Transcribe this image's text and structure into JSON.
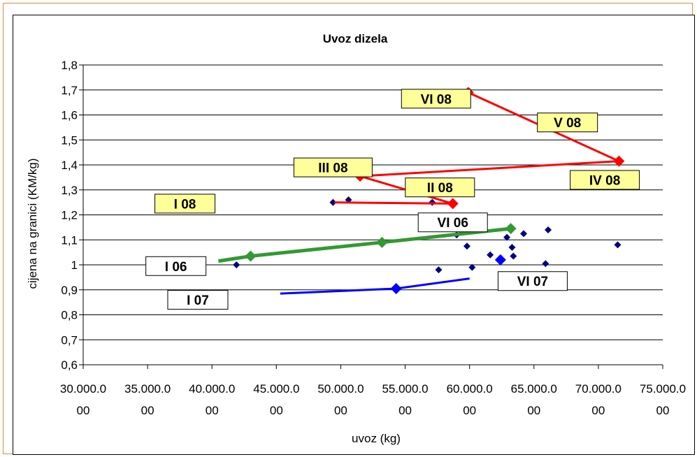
{
  "chart_data": {
    "type": "scatter",
    "title": "Uvoz dizela",
    "xlabel": "uvoz (kg)",
    "ylabel": "cijena na granici (KM/kg)",
    "xlim": [
      30000000,
      75000000
    ],
    "ylim": [
      0.6,
      1.8
    ],
    "x_ticks": [
      30000000,
      35000000,
      40000000,
      45000000,
      50000000,
      55000000,
      60000000,
      65000000,
      70000000,
      75000000
    ],
    "x_tick_labels_line1": [
      "30.000.0",
      "35.000.0",
      "40.000.0",
      "45.000.0",
      "50.000.0",
      "55.000.0",
      "60.000.0",
      "65.000.0",
      "70.000.0",
      "75.000.0"
    ],
    "x_tick_labels_line2": [
      "00",
      "00",
      "00",
      "00",
      "00",
      "00",
      "00",
      "00",
      "00",
      "00"
    ],
    "y_ticks": [
      0.6,
      0.7,
      0.8,
      0.9,
      1.0,
      1.1,
      1.2,
      1.3,
      1.4,
      1.5,
      1.6,
      1.7,
      1.8
    ],
    "y_tick_labels": [
      "0,6",
      "0,7",
      "0,8",
      "0,9",
      "1",
      "1,1",
      "1,2",
      "1,3",
      "1,4",
      "1,5",
      "1,6",
      "1,7",
      "1,8"
    ],
    "grid": "horizontal",
    "colors": {
      "scatter": "#000080",
      "red": "#ff0000",
      "green": "#339933",
      "blue": "#0000ff",
      "label_yellow": "#ffff99",
      "label_white": "#ffffff"
    },
    "series": [
      {
        "style": "scatter",
        "x": [
          41900000,
          49400000,
          50600000,
          57100000,
          57600000,
          59000000,
          59300000,
          59800000,
          60200000,
          61600000,
          62900000,
          63300000,
          63400000,
          64200000,
          65900000,
          66100000,
          71500000
        ],
        "y": [
          1.0,
          1.25,
          1.26,
          1.25,
          0.98,
          1.12,
          1.14,
          1.075,
          0.99,
          1.04,
          1.11,
          1.07,
          1.035,
          1.125,
          1.005,
          1.14,
          1.08
        ]
      },
      {
        "style": "line",
        "color": "red",
        "x": [
          49500000,
          58700000,
          51500000,
          71600000,
          59900000
        ],
        "y": [
          1.25,
          1.245,
          1.355,
          1.415,
          1.69
        ],
        "markers": [
          false,
          true,
          true,
          true,
          true
        ]
      },
      {
        "style": "line",
        "color": "green",
        "x": [
          40500000,
          43000000,
          53200000,
          63200000
        ],
        "y": [
          1.015,
          1.035,
          1.09,
          1.145
        ],
        "markers": [
          false,
          true,
          true,
          true
        ]
      },
      {
        "style": "line",
        "color": "blue",
        "x": [
          45300000,
          54300000,
          60000000
        ],
        "y": [
          0.885,
          0.905,
          0.945
        ],
        "markers": [
          false,
          true,
          false
        ]
      },
      {
        "style": "scatter",
        "color": "blue",
        "x": [
          62400000
        ],
        "y": [
          1.02
        ]
      }
    ],
    "annotations": [
      {
        "text": "VI 08",
        "style": "yellow",
        "x": 57400000,
        "y": 1.665
      },
      {
        "text": "V 08",
        "style": "yellow",
        "x": 67600000,
        "y": 1.57
      },
      {
        "text": "III 08",
        "style": "yellow",
        "x": 49400000,
        "y": 1.39
      },
      {
        "text": "II 08",
        "style": "yellow",
        "x": 57700000,
        "y": 1.31
      },
      {
        "text": "IV 08",
        "style": "yellow",
        "x": 70500000,
        "y": 1.34
      },
      {
        "text": "I 08",
        "style": "yellow",
        "x": 37900000,
        "y": 1.245
      },
      {
        "text": "VI 06",
        "style": "white",
        "x": 58700000,
        "y": 1.17
      },
      {
        "text": "I 06",
        "style": "white",
        "x": 37200000,
        "y": 0.995
      },
      {
        "text": "VI 07",
        "style": "white",
        "x": 64900000,
        "y": 0.935
      },
      {
        "text": "I 07",
        "style": "white",
        "x": 38900000,
        "y": 0.86
      }
    ]
  }
}
